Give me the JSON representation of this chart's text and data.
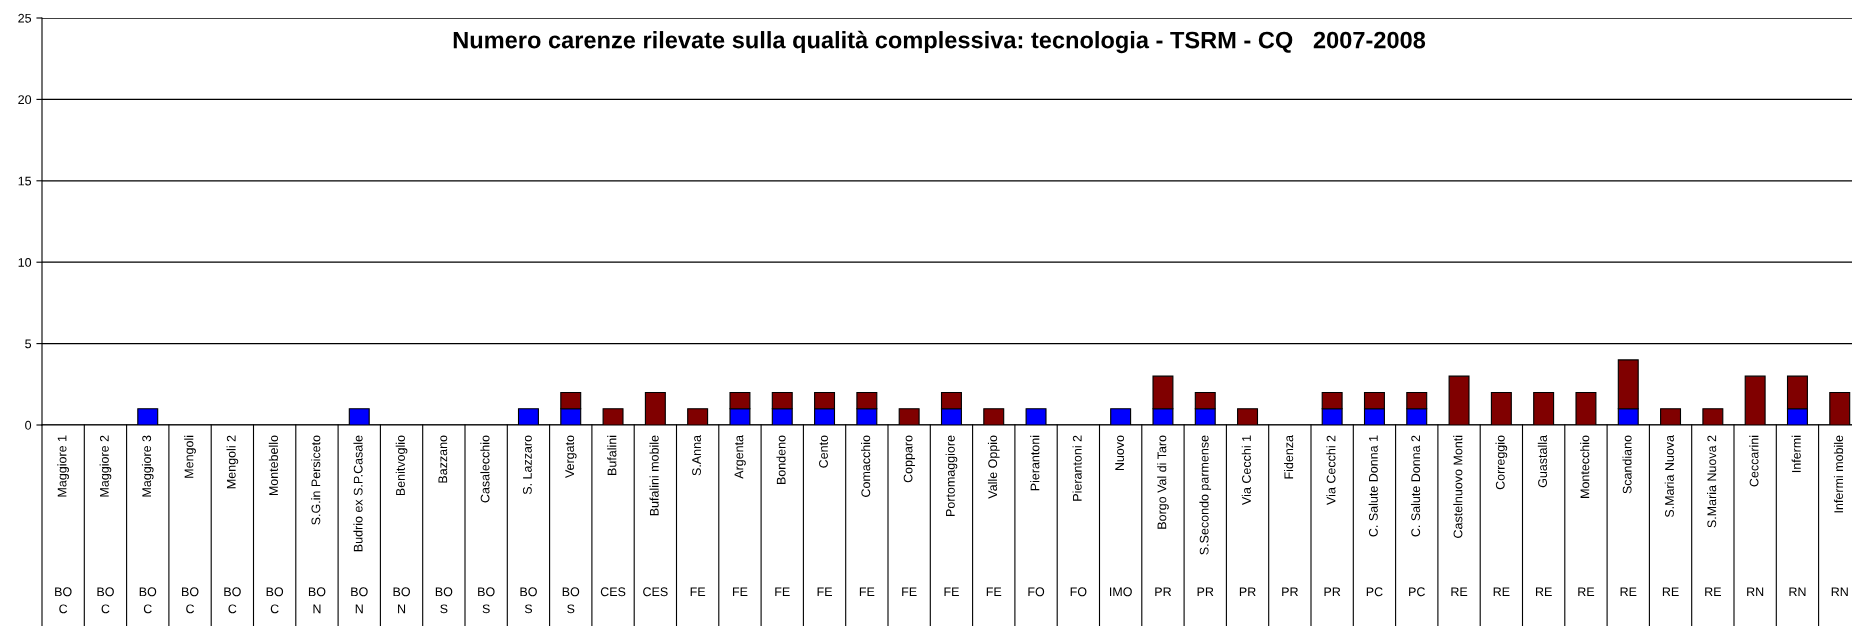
{
  "chart_data": {
    "type": "bar",
    "title": "Numero carenze rilevate sulla qualità complessiva: tecnologia - TSRM - CQ   2007-2008",
    "stacked": true,
    "grid": "y",
    "ylim": [
      0,
      25
    ],
    "yticks": [
      0,
      5,
      10,
      15,
      20,
      25
    ],
    "categories": [
      "Maggiore 1",
      "Maggiore 2",
      "Maggiore 3",
      "Mengoli",
      "Mengoli 2",
      "Montebello",
      "S.G.in Persiceto",
      "Budrio ex S.P.Casale",
      "Benitvoglio",
      "Bazzano",
      "Casalecchio",
      "S. Lazzaro",
      "Vergato",
      "Bufalini",
      "Bufalini mobile",
      "S.Anna",
      "Argenta",
      "Bondeno",
      "Cento",
      "Comacchio",
      "Copparo",
      "Portomaggiore",
      "Valle Oppio",
      "Pierantoni",
      "Pierantoni 2",
      "Nuovo",
      "Borgo Val di Taro",
      "S.Secondo parmense",
      "Via Cecchi 1",
      "Fidenza",
      "Via Cecchi 2",
      "C. Salute Donna 1",
      "C. Salute Donna 2",
      "Castelnuovo Monti",
      "Correggio",
      "Guastalla",
      "Montecchio",
      "Scandiano",
      "S.Maria Nuova",
      "S.Maria Nuova 2",
      "Ceccarini",
      "Infermi",
      "Infermi mobile"
    ],
    "series": [
      {
        "color": "#0000ff",
        "values": [
          0,
          0,
          1,
          0,
          0,
          0,
          0,
          1,
          0,
          0,
          0,
          1,
          1,
          0,
          0,
          0,
          1,
          1,
          1,
          1,
          0,
          1,
          0,
          1,
          0,
          1,
          1,
          1,
          0,
          0,
          1,
          1,
          1,
          0,
          0,
          0,
          0,
          1,
          0,
          0,
          0,
          1,
          0
        ]
      },
      {
        "color": "#800000",
        "values": [
          0,
          0,
          0,
          0,
          0,
          0,
          0,
          0,
          0,
          0,
          0,
          0,
          1,
          1,
          2,
          1,
          1,
          1,
          1,
          1,
          1,
          1,
          1,
          0,
          0,
          0,
          2,
          1,
          1,
          0,
          1,
          1,
          1,
          3,
          2,
          2,
          2,
          3,
          1,
          1,
          3,
          2,
          2
        ]
      }
    ],
    "annotations": [
      "BO\nC",
      "BO\nC",
      "BO\nC",
      "BO\nC",
      "BO\nC",
      "BO\nC",
      "BO\nN",
      "BO\nN",
      "BO\nN",
      "BO\nS",
      "BO\nS",
      "BO\nS",
      "BO\nS",
      "CES",
      "CES",
      "FE",
      "FE",
      "FE",
      "FE",
      "FE",
      "FE",
      "FE",
      "FE",
      "FO",
      "FO",
      "IMO",
      "PR",
      "PR",
      "PR",
      "PR",
      "PR",
      "PC",
      "PC",
      "RE",
      "RE",
      "RE",
      "RE",
      "RE",
      "RE",
      "RE",
      "RN",
      "RN",
      "RN"
    ]
  }
}
